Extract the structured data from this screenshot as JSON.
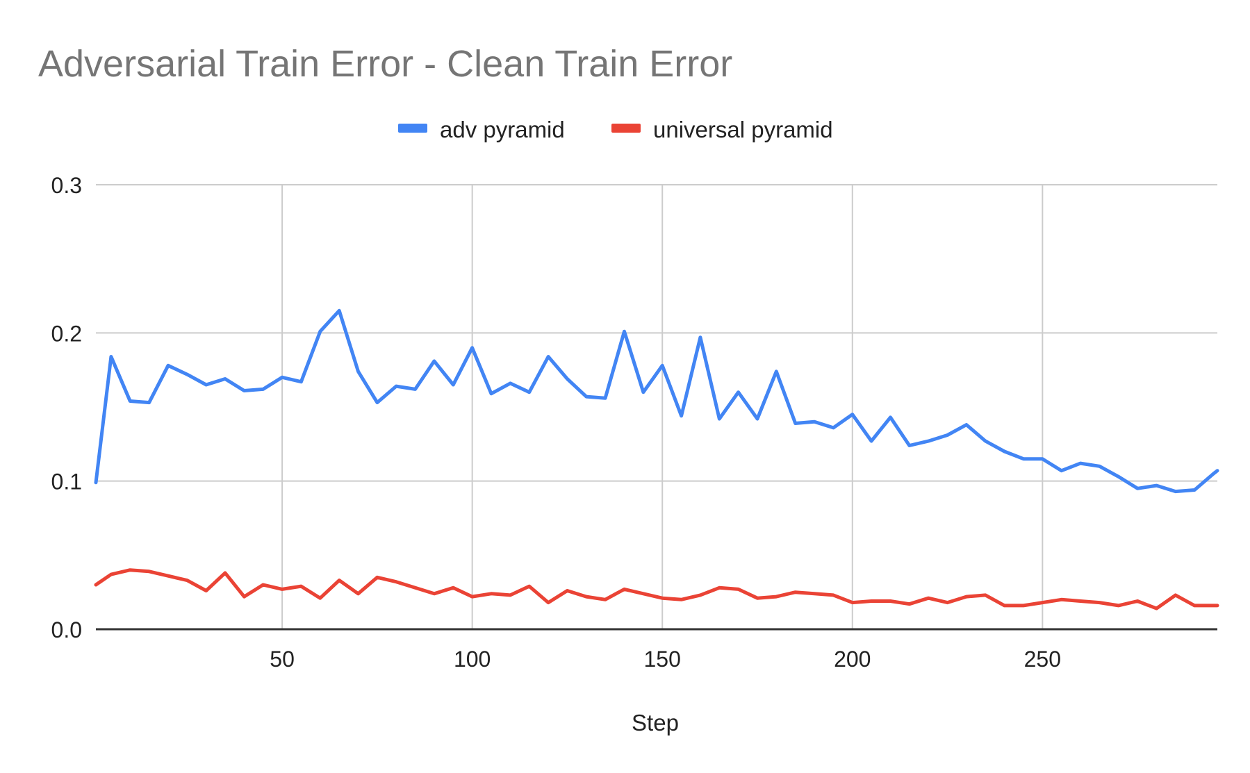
{
  "chart_data": {
    "type": "line",
    "title": "Adversarial Train Error - Clean Train Error",
    "xlabel": "Step",
    "ylabel": "",
    "xlim": [
      1,
      296
    ],
    "ylim": [
      0.0,
      0.3
    ],
    "x_ticks": [
      50,
      100,
      150,
      200,
      250
    ],
    "x_tick_labels": [
      "50",
      "100",
      "150",
      "200",
      "250"
    ],
    "y_ticks": [
      0.0,
      0.1,
      0.2,
      0.3
    ],
    "y_tick_labels": [
      "0.0",
      "0.1",
      "0.2",
      "0.3"
    ],
    "grid": true,
    "legend_position": "top-center",
    "x": [
      1,
      5,
      10,
      15,
      20,
      25,
      30,
      35,
      40,
      45,
      50,
      55,
      60,
      65,
      70,
      75,
      80,
      85,
      90,
      95,
      100,
      105,
      110,
      115,
      120,
      125,
      130,
      135,
      140,
      145,
      150,
      155,
      160,
      165,
      170,
      175,
      180,
      185,
      190,
      195,
      200,
      205,
      210,
      215,
      220,
      225,
      230,
      235,
      240,
      245,
      250,
      255,
      260,
      265,
      270,
      275,
      280,
      285,
      290,
      295,
      296
    ],
    "series": [
      {
        "name": "adv pyramid",
        "color": "#4285f4",
        "values": [
          0.099,
          0.184,
          0.154,
          0.153,
          0.178,
          0.172,
          0.165,
          0.169,
          0.161,
          0.162,
          0.17,
          0.167,
          0.201,
          0.215,
          0.174,
          0.153,
          0.164,
          0.162,
          0.181,
          0.165,
          0.19,
          0.159,
          0.166,
          0.16,
          0.184,
          0.169,
          0.157,
          0.156,
          0.201,
          0.16,
          0.178,
          0.144,
          0.197,
          0.142,
          0.16,
          0.142,
          0.174,
          0.139,
          0.14,
          0.136,
          0.145,
          0.127,
          0.143,
          0.124,
          0.127,
          0.131,
          0.138,
          0.127,
          0.12,
          0.115,
          0.115,
          0.107,
          0.112,
          0.11,
          0.103,
          0.095,
          0.097,
          0.093,
          0.094,
          0.105,
          0.107
        ]
      },
      {
        "name": "universal pyramid",
        "color": "#ea4335",
        "values": [
          0.03,
          0.037,
          0.04,
          0.039,
          0.036,
          0.033,
          0.026,
          0.038,
          0.022,
          0.03,
          0.027,
          0.029,
          0.021,
          0.033,
          0.024,
          0.035,
          0.032,
          0.028,
          0.024,
          0.028,
          0.022,
          0.024,
          0.023,
          0.029,
          0.018,
          0.026,
          0.022,
          0.02,
          0.027,
          0.024,
          0.021,
          0.02,
          0.023,
          0.028,
          0.027,
          0.021,
          0.022,
          0.025,
          0.024,
          0.023,
          0.018,
          0.019,
          0.019,
          0.017,
          0.021,
          0.018,
          0.022,
          0.023,
          0.016,
          0.016,
          0.018,
          0.02,
          0.019,
          0.018,
          0.016,
          0.019,
          0.014,
          0.023,
          0.016,
          0.016,
          0.016
        ]
      }
    ]
  }
}
